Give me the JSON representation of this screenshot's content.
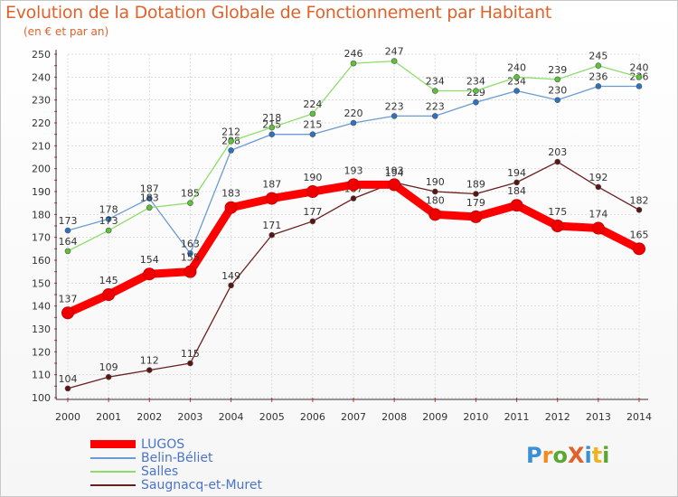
{
  "header": {
    "title": "Evolution de la Dotation Globale de Fonctionnement par Habitant",
    "subtitle": "(en € et par an)"
  },
  "logo": {
    "text": "ProXiti",
    "colors": [
      "#3a8fd6",
      "#f28a1e",
      "#5aa832",
      "#e0622a",
      "#3a8fd6",
      "#f0b21e",
      "#5aa832"
    ]
  },
  "chart_data": {
    "type": "line",
    "x": [
      "2000",
      "2001",
      "2002",
      "2003",
      "2004",
      "2005",
      "2006",
      "2007",
      "2008",
      "2009",
      "2010",
      "2011",
      "2012",
      "2013",
      "2014"
    ],
    "ylim": [
      100,
      250
    ],
    "yticks": [
      100,
      110,
      120,
      130,
      140,
      150,
      160,
      170,
      180,
      190,
      200,
      210,
      220,
      230,
      240,
      250
    ],
    "series": [
      {
        "name": "Saugnacq-et-Muret",
        "color": "#6b1e1e",
        "dot": "#5a1414",
        "values": [
          104,
          109,
          112,
          115,
          149,
          171,
          177,
          187,
          194,
          190,
          189,
          194,
          203,
          192,
          182
        ]
      },
      {
        "name": "Belin-Béliet",
        "color": "#6a9bd3",
        "dot": "#2a73c4",
        "values": [
          173,
          178,
          187,
          163,
          208,
          215,
          215,
          220,
          223,
          223,
          229,
          234,
          230,
          236,
          236
        ]
      },
      {
        "name": "Salles",
        "color": "#8fdc6a",
        "dot": "#5cc23a",
        "values": [
          164,
          173,
          183,
          185,
          212,
          218,
          224,
          246,
          247,
          234,
          234,
          240,
          239,
          245,
          240
        ]
      },
      {
        "name": "LUGOS",
        "color": "#ff0000",
        "dot": "#ee0000",
        "values": [
          137,
          145,
          154,
          155,
          183,
          187,
          190,
          193,
          193,
          180,
          179,
          184,
          175,
          174,
          165
        ]
      }
    ],
    "legend": [
      "LUGOS",
      "Belin-Béliet",
      "Salles",
      "Saugnacq-et-Muret"
    ]
  }
}
